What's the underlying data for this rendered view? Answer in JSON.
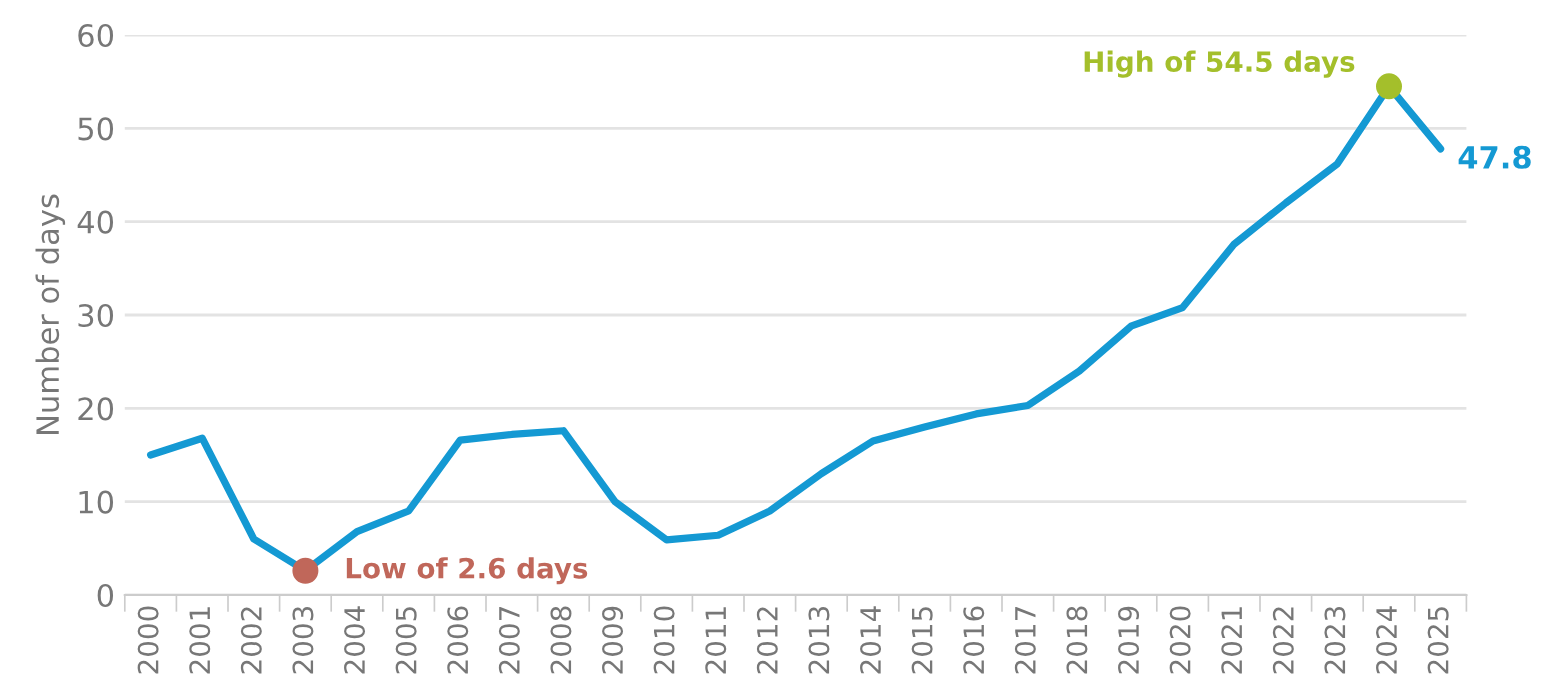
{
  "chart_data": {
    "type": "line",
    "ylabel": "Number of days",
    "categories": [
      "2000",
      "2001",
      "2002",
      "2003",
      "2004",
      "2005",
      "2006",
      "2007",
      "2008",
      "2009",
      "2010",
      "2011",
      "2012",
      "2013",
      "2014",
      "2015",
      "2016",
      "2017",
      "2018",
      "2019",
      "2020",
      "2021",
      "2022",
      "2023",
      "2024",
      "2025"
    ],
    "series": [
      {
        "color": "#1499d3",
        "values": [
          15,
          16.8,
          6,
          2.6,
          6.8,
          9,
          16.6,
          17.2,
          17.6,
          10,
          5.9,
          6.4,
          9,
          13,
          16.5,
          18,
          19.4,
          20.3,
          24,
          28.8,
          30.8,
          37.6,
          42,
          46.2,
          54.5,
          47.8
        ],
        "value_labels": [
          null,
          null,
          null,
          null,
          null,
          null,
          null,
          null,
          null,
          null,
          null,
          null,
          null,
          null,
          null,
          null,
          null,
          null,
          null,
          null,
          null,
          null,
          null,
          null,
          null,
          "47.8"
        ]
      },
      {
        "type": "scatter",
        "color": "#c0675a",
        "values": [
          null,
          null,
          null,
          2.6,
          null,
          null,
          null,
          null,
          null,
          null,
          null,
          null,
          null,
          null,
          null,
          null,
          null,
          null,
          null,
          null,
          null,
          null,
          null,
          null,
          null,
          null
        ]
      },
      {
        "type": "scatter",
        "color": "#a4bf2b",
        "values": [
          null,
          null,
          null,
          null,
          null,
          null,
          null,
          null,
          null,
          null,
          null,
          null,
          null,
          null,
          null,
          null,
          null,
          null,
          null,
          null,
          null,
          null,
          null,
          null,
          54.5,
          null
        ]
      }
    ],
    "annotations": [
      {
        "text": "Low of 2.6 days",
        "x": "2003",
        "y": 2.6
      },
      {
        "text": "High of 54.5 days",
        "x": "2024",
        "y": 54.5
      }
    ],
    "ylim": [
      0,
      60
    ],
    "yticks": [
      0,
      10,
      20,
      30,
      40,
      50,
      60
    ],
    "grid": "y"
  }
}
